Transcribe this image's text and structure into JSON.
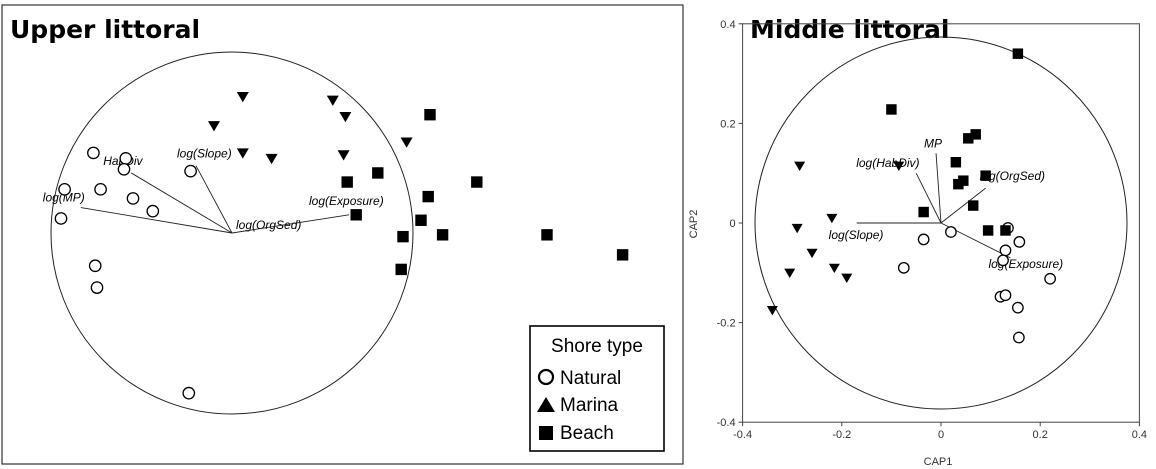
{
  "chart_data": [
    {
      "type": "scatter",
      "title": "Upper littoral",
      "xlabel": "",
      "ylabel": "",
      "axes_shown": false,
      "legend": {
        "title": "Shore type",
        "placement": "bottom-right",
        "entries": [
          {
            "label": "Natural",
            "marker": "open-circle"
          },
          {
            "label": "Marina",
            "marker": "filled-triangle"
          },
          {
            "label": "Beach",
            "marker": "filled-square"
          }
        ]
      },
      "correlation_circle": true,
      "vectors": [
        {
          "label": "log(Slope)",
          "x": -0.2,
          "y": 0.37
        },
        {
          "label": "HabDiv",
          "x": -0.56,
          "y": 0.33
        },
        {
          "label": "log(MP)",
          "x": -0.84,
          "y": 0.14
        },
        {
          "label": "log(OrgSed)",
          "x": 0.0,
          "y": 0.0
        },
        {
          "label": "log(Exposure)",
          "x": 0.65,
          "y": 0.1
        }
      ],
      "series": [
        {
          "name": "Natural",
          "marker": "open-circle",
          "points": [
            [
              -0.77,
              0.44
            ],
            [
              -0.59,
              0.41
            ],
            [
              -0.6,
              0.35
            ],
            [
              -0.23,
              0.34
            ],
            [
              -0.93,
              0.24
            ],
            [
              -0.73,
              0.24
            ],
            [
              -0.55,
              0.19
            ],
            [
              -0.44,
              0.12
            ],
            [
              -0.95,
              0.08
            ],
            [
              -0.76,
              -0.18
            ],
            [
              -0.75,
              -0.3
            ],
            [
              -0.24,
              -0.88
            ]
          ]
        },
        {
          "name": "Marina",
          "marker": "filled-triangle",
          "points": [
            [
              0.06,
              0.75
            ],
            [
              -0.1,
              0.59
            ],
            [
              0.56,
              0.73
            ],
            [
              0.63,
              0.64
            ],
            [
              0.06,
              0.44
            ],
            [
              0.22,
              0.41
            ],
            [
              0.62,
              0.43
            ],
            [
              0.97,
              0.5
            ]
          ]
        },
        {
          "name": "Beach",
          "marker": "filled-square",
          "points": [
            [
              1.1,
              0.65
            ],
            [
              0.81,
              0.33
            ],
            [
              0.64,
              0.28
            ],
            [
              1.36,
              0.28
            ],
            [
              1.09,
              0.2
            ],
            [
              0.69,
              0.1
            ],
            [
              1.05,
              0.07
            ],
            [
              1.17,
              -0.01
            ],
            [
              0.95,
              -0.02
            ],
            [
              1.75,
              -0.01
            ],
            [
              0.94,
              -0.2
            ],
            [
              2.17,
              -0.12
            ]
          ]
        }
      ]
    },
    {
      "type": "scatter",
      "title": "Middle littoral",
      "xlabel": "CAP1",
      "ylabel": "CAP2",
      "xlim": [
        -0.4,
        0.4
      ],
      "ylim": [
        -0.4,
        0.4
      ],
      "xticks": [
        "-0.4",
        "-0.2",
        "0",
        "0.2",
        "0.4"
      ],
      "yticks": [
        "-0.4",
        "-0.2",
        "0",
        "0.2",
        "0.4"
      ],
      "correlation_circle": true,
      "vectors": [
        {
          "label": "MP",
          "x": -0.01,
          "y": 0.14
        },
        {
          "label": "log(HabDiv)",
          "x": -0.05,
          "y": 0.1
        },
        {
          "label": "log(OrgSed)",
          "x": 0.09,
          "y": 0.07
        },
        {
          "label": "log(Slope)",
          "x": -0.17,
          "y": 0.0
        },
        {
          "label": "log(Exposure)",
          "x": 0.14,
          "y": -0.07
        }
      ],
      "series": [
        {
          "name": "Natural",
          "marker": "open-circle",
          "points": [
            [
              0.02,
              -0.018
            ],
            [
              -0.035,
              -0.033
            ],
            [
              0.135,
              -0.01
            ],
            [
              0.13,
              -0.055
            ],
            [
              0.158,
              -0.038
            ],
            [
              0.125,
              -0.075
            ],
            [
              0.22,
              -0.112
            ],
            [
              -0.075,
              -0.09
            ],
            [
              0.12,
              -0.148
            ],
            [
              0.13,
              -0.145
            ],
            [
              0.155,
              -0.17
            ],
            [
              0.157,
              -0.23
            ]
          ]
        },
        {
          "name": "Marina",
          "marker": "filled-triangle",
          "points": [
            [
              -0.285,
              0.115
            ],
            [
              -0.085,
              0.115
            ],
            [
              -0.29,
              -0.01
            ],
            [
              -0.22,
              0.01
            ],
            [
              -0.26,
              -0.06
            ],
            [
              -0.305,
              -0.1
            ],
            [
              -0.215,
              -0.09
            ],
            [
              -0.19,
              -0.11
            ],
            [
              -0.34,
              -0.175
            ]
          ]
        },
        {
          "name": "Beach",
          "marker": "filled-square",
          "points": [
            [
              0.155,
              0.34
            ],
            [
              -0.1,
              0.228
            ],
            [
              0.07,
              0.178
            ],
            [
              0.055,
              0.17
            ],
            [
              0.03,
              0.122
            ],
            [
              0.09,
              0.095
            ],
            [
              0.045,
              0.085
            ],
            [
              0.035,
              0.078
            ],
            [
              0.065,
              0.035
            ],
            [
              -0.035,
              0.022
            ],
            [
              0.095,
              -0.015
            ],
            [
              0.13,
              -0.015
            ]
          ]
        }
      ]
    }
  ]
}
